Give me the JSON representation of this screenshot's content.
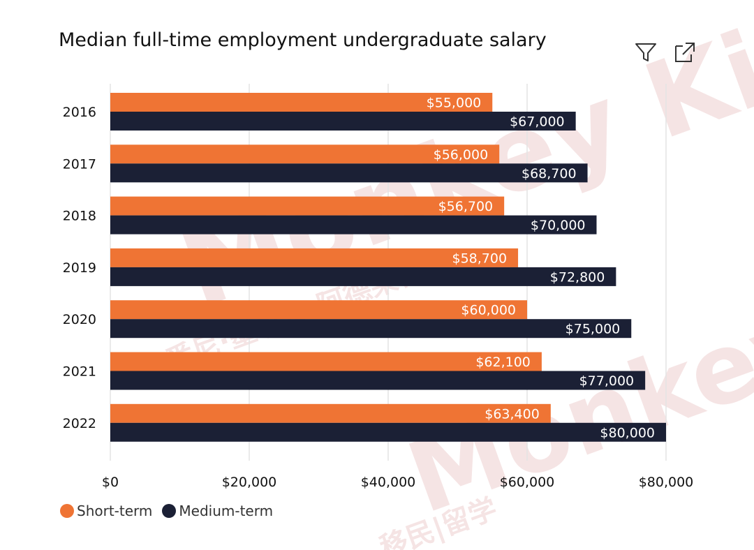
{
  "header": {
    "title": "Median full-time employment undergraduate salary",
    "filter_icon": "filter-icon",
    "expand_icon": "focus-mode-icon"
  },
  "colors": {
    "short_term": "#ef7434",
    "medium_term": "#1b2035",
    "grid": "#e3e3e3",
    "watermark": "#f3dede"
  },
  "legend": {
    "items": [
      {
        "label": "Short-term",
        "color": "#ef7434"
      },
      {
        "label": "Medium-term",
        "color": "#1b2035"
      }
    ]
  },
  "watermark": {
    "brand": "Monkey King",
    "chars_1": "移民|留学",
    "chars_2": "悉尼·墨尔本·阿德莱德"
  },
  "chart_data": {
    "type": "bar",
    "orientation": "horizontal",
    "title": "Median full-time employment undergraduate salary",
    "categories": [
      "2016",
      "2017",
      "2018",
      "2019",
      "2020",
      "2021",
      "2022"
    ],
    "series": [
      {
        "name": "Short-term",
        "values": [
          55000,
          56000,
          56700,
          58700,
          60000,
          62100,
          63400
        ],
        "labels": [
          "$55,000",
          "$56,000",
          "$56,700",
          "$58,700",
          "$60,000",
          "$62,100",
          "$63,400"
        ]
      },
      {
        "name": "Medium-term",
        "values": [
          67000,
          68700,
          70000,
          72800,
          75000,
          77000,
          80000
        ],
        "labels": [
          "$67,000",
          "$68,700",
          "$70,000",
          "$72,800",
          "$75,000",
          "$77,000",
          "$80,000"
        ]
      }
    ],
    "x_ticks": [
      0,
      20000,
      40000,
      60000,
      80000
    ],
    "x_tick_labels": [
      "$0",
      "$20,000",
      "$40,000",
      "$60,000",
      "$80,000"
    ],
    "xlim": [
      0,
      80000
    ],
    "grid": true,
    "legend_position": "bottom-left"
  }
}
